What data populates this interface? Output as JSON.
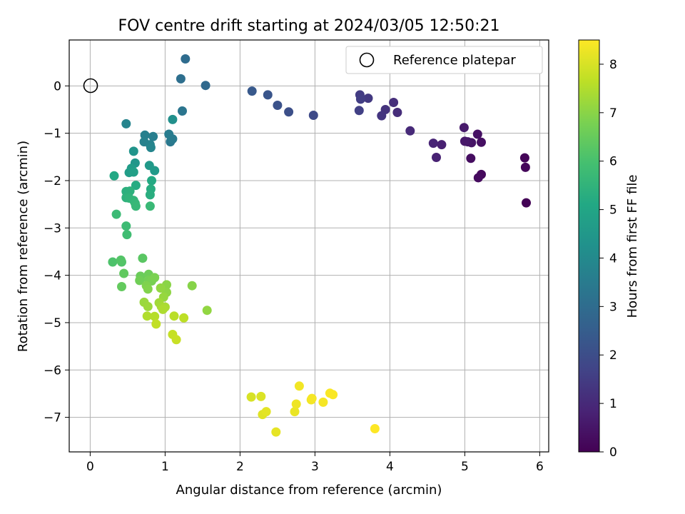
{
  "chart_data": {
    "type": "scatter",
    "title": "FOV centre drift starting at 2024/03/05 12:50:21",
    "xlabel": "Angular distance from reference (arcmin)",
    "ylabel": "Rotation from reference (arcmin)",
    "xlim": [
      -0.28,
      6.12
    ],
    "ylim": [
      -7.73,
      0.97
    ],
    "xticks": [
      0,
      1,
      2,
      3,
      4,
      5,
      6
    ],
    "yticks": [
      0,
      -1,
      -2,
      -3,
      -4,
      -5,
      -6,
      -7
    ],
    "grid": true,
    "legend": {
      "placement": "top-right",
      "entries": [
        "Reference platepar"
      ]
    },
    "reference_point": {
      "x": 0,
      "y": 0
    },
    "colorbar": {
      "label": "Hours from first FF file",
      "range": [
        0,
        8.5
      ],
      "ticks": [
        0,
        1,
        2,
        3,
        4,
        5,
        6,
        7,
        8
      ],
      "colormap": "viridis"
    },
    "points": [
      [
        5.82,
        -2.47,
        0.05
      ],
      [
        5.8,
        -1.52,
        0.1
      ],
      [
        5.81,
        -1.72,
        0.15
      ],
      [
        5.22,
        -1.87,
        0.2
      ],
      [
        5.18,
        -1.94,
        0.25
      ],
      [
        5.08,
        -1.53,
        0.3
      ],
      [
        5.22,
        -1.19,
        0.35
      ],
      [
        5.17,
        -1.02,
        0.4
      ],
      [
        5.09,
        -1.2,
        0.45
      ],
      [
        5.04,
        -1.18,
        0.5
      ],
      [
        5.0,
        -1.17,
        0.55
      ],
      [
        4.99,
        -0.88,
        0.6
      ],
      [
        4.69,
        -1.24,
        0.75
      ],
      [
        4.62,
        -1.51,
        0.8
      ],
      [
        4.58,
        -1.21,
        0.85
      ],
      [
        4.27,
        -0.95,
        1.0
      ],
      [
        4.1,
        -0.56,
        1.1
      ],
      [
        4.05,
        -0.35,
        1.15
      ],
      [
        3.94,
        -0.5,
        1.25
      ],
      [
        3.89,
        -0.63,
        1.3
      ],
      [
        3.71,
        -0.26,
        1.4
      ],
      [
        3.6,
        -0.19,
        1.5
      ],
      [
        3.61,
        -0.28,
        1.55
      ],
      [
        3.59,
        -0.52,
        1.6
      ],
      [
        2.98,
        -0.62,
        1.9
      ],
      [
        2.65,
        -0.55,
        2.05
      ],
      [
        2.5,
        -0.41,
        2.15
      ],
      [
        2.37,
        -0.19,
        2.25
      ],
      [
        2.16,
        -0.11,
        2.35
      ],
      [
        1.54,
        0.01,
        2.9
      ],
      [
        1.27,
        0.57,
        3.0
      ],
      [
        1.21,
        0.15,
        3.1
      ],
      [
        1.23,
        -0.53,
        3.3
      ],
      [
        1.07,
        -1.18,
        3.4
      ],
      [
        1.1,
        -1.12,
        3.5
      ],
      [
        1.05,
        -1.02,
        3.55
      ],
      [
        0.84,
        -1.07,
        3.6
      ],
      [
        0.73,
        -1.04,
        3.65
      ],
      [
        0.72,
        -1.18,
        3.7
      ],
      [
        0.8,
        -1.24,
        3.75
      ],
      [
        0.81,
        -1.3,
        3.85
      ],
      [
        0.48,
        -0.8,
        3.8
      ],
      [
        1.1,
        -0.71,
        4.2
      ],
      [
        0.58,
        -1.38,
        4.35
      ],
      [
        0.6,
        -1.63,
        4.45
      ],
      [
        0.79,
        -1.68,
        4.55
      ],
      [
        0.86,
        -1.79,
        4.6
      ],
      [
        0.55,
        -1.74,
        4.65
      ],
      [
        0.52,
        -1.83,
        4.7
      ],
      [
        0.58,
        -1.82,
        4.75
      ],
      [
        0.32,
        -1.9,
        5.1
      ],
      [
        0.82,
        -2.0,
        5.15
      ],
      [
        0.61,
        -2.1,
        5.2
      ],
      [
        0.81,
        -2.18,
        5.25
      ],
      [
        0.8,
        -2.3,
        5.3
      ],
      [
        0.48,
        -2.23,
        5.35
      ],
      [
        0.53,
        -2.22,
        5.4
      ],
      [
        0.48,
        -2.36,
        5.45
      ],
      [
        0.52,
        -2.37,
        5.5
      ],
      [
        0.58,
        -2.42,
        5.55
      ],
      [
        0.6,
        -2.48,
        5.6
      ],
      [
        0.61,
        -2.54,
        5.65
      ],
      [
        0.8,
        -2.54,
        5.7
      ],
      [
        0.35,
        -2.71,
        5.75
      ],
      [
        0.48,
        -2.96,
        5.8
      ],
      [
        0.49,
        -3.14,
        5.85
      ],
      [
        0.3,
        -3.72,
        6.1
      ],
      [
        0.42,
        -3.72,
        6.15
      ],
      [
        0.41,
        -3.68,
        6.2
      ],
      [
        0.7,
        -3.64,
        6.3
      ],
      [
        0.45,
        -3.96,
        6.4
      ],
      [
        0.42,
        -4.24,
        6.45
      ],
      [
        0.67,
        -4.02,
        6.55
      ],
      [
        0.78,
        -3.98,
        6.6
      ],
      [
        0.66,
        -4.11,
        6.65
      ],
      [
        0.78,
        -4.1,
        6.7
      ],
      [
        0.82,
        -4.12,
        6.75
      ],
      [
        0.86,
        -4.05,
        6.8
      ],
      [
        0.75,
        -4.22,
        6.85
      ],
      [
        0.77,
        -4.29,
        6.9
      ],
      [
        1.36,
        -4.22,
        6.95
      ],
      [
        1.02,
        -4.2,
        7.0
      ],
      [
        1.02,
        -4.36,
        7.05
      ],
      [
        0.94,
        -4.27,
        7.1
      ],
      [
        0.98,
        -4.46,
        7.15
      ],
      [
        0.72,
        -4.57,
        7.2
      ],
      [
        0.77,
        -4.66,
        7.25
      ],
      [
        0.92,
        -4.58,
        7.3
      ],
      [
        0.95,
        -4.66,
        7.35
      ],
      [
        1.0,
        -4.67,
        7.4
      ],
      [
        0.97,
        -4.72,
        7.45
      ],
      [
        1.56,
        -4.74,
        7.1
      ],
      [
        0.76,
        -4.86,
        7.5
      ],
      [
        0.86,
        -4.87,
        7.55
      ],
      [
        1.12,
        -4.86,
        7.6
      ],
      [
        1.25,
        -4.9,
        7.65
      ],
      [
        0.88,
        -5.03,
        7.7
      ],
      [
        1.1,
        -5.25,
        7.75
      ],
      [
        1.15,
        -5.36,
        7.8
      ],
      [
        2.15,
        -6.57,
        8.0
      ],
      [
        2.28,
        -6.56,
        8.05
      ],
      [
        2.3,
        -6.94,
        8.1
      ],
      [
        2.35,
        -6.88,
        8.15
      ],
      [
        2.48,
        -7.31,
        8.2
      ],
      [
        2.73,
        -6.88,
        8.25
      ],
      [
        2.75,
        -6.72,
        8.3
      ],
      [
        2.79,
        -6.34,
        8.35
      ],
      [
        2.95,
        -6.63,
        8.35
      ],
      [
        2.96,
        -6.6,
        8.4
      ],
      [
        3.11,
        -6.68,
        8.4
      ],
      [
        3.2,
        -6.49,
        8.45
      ],
      [
        3.24,
        -6.52,
        8.45
      ],
      [
        3.8,
        -7.24,
        8.5
      ]
    ]
  }
}
